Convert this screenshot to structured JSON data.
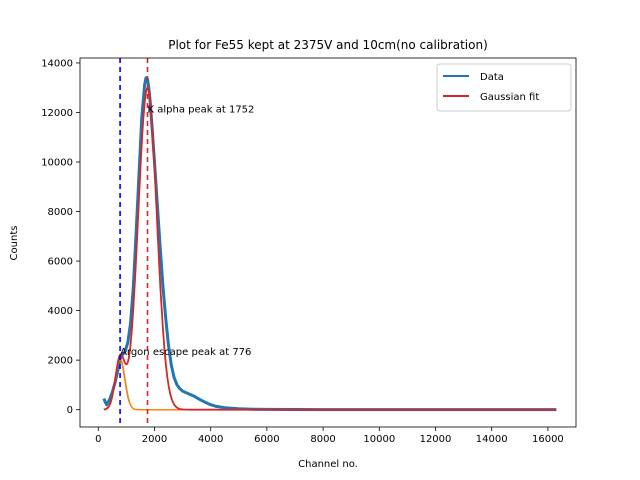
{
  "chart_data": {
    "type": "line",
    "title": "Plot for Fe55 kept at 2375V and 10cm(no calibration)",
    "xlabel": "Channel no.",
    "ylabel": "Counts",
    "xlim": [
      -650,
      17000
    ],
    "ylim": [
      -700,
      14200
    ],
    "xticks": [
      0,
      2000,
      4000,
      6000,
      8000,
      10000,
      12000,
      14000,
      16000
    ],
    "yticks": [
      0,
      2000,
      4000,
      6000,
      8000,
      10000,
      12000,
      14000
    ],
    "grid": false,
    "legend": {
      "placement": "top-right",
      "entries": [
        {
          "label": "Data",
          "color": "#1f77b4"
        },
        {
          "label": "Gaussian fit",
          "color": "#d62728"
        }
      ]
    },
    "series": [
      {
        "name": "Data",
        "color": "#1f77b4",
        "style": "solid",
        "x": [
          200,
          250,
          300,
          400,
          500,
          600,
          700,
          776,
          850,
          950,
          1050,
          1150,
          1250,
          1350,
          1450,
          1550,
          1650,
          1700,
          1752,
          1800,
          1850,
          1900,
          2000,
          2100,
          2200,
          2300,
          2400,
          2500,
          2600,
          2700,
          2800,
          2900,
          3000,
          3200,
          3400,
          3600,
          3800,
          4000,
          4200,
          4500,
          5000,
          5500,
          6000,
          7000,
          8000,
          10000,
          12000,
          14000,
          16300
        ],
        "y": [
          450,
          300,
          200,
          400,
          700,
          1100,
          1600,
          2050,
          2200,
          2350,
          2700,
          3500,
          5000,
          7200,
          9500,
          11800,
          13100,
          13400,
          13350,
          13000,
          12400,
          11600,
          10000,
          8300,
          6600,
          5000,
          3700,
          2600,
          1800,
          1300,
          1000,
          850,
          750,
          650,
          550,
          420,
          300,
          200,
          130,
          80,
          40,
          20,
          10,
          5,
          3,
          2,
          2,
          2,
          2
        ]
      },
      {
        "color": "#2ca02c",
        "style": "solid",
        "kind": "gaussian",
        "amplitude": 2050,
        "mean": 776,
        "sigma": 170,
        "x_range": [
          200,
          1100
        ]
      },
      {
        "color": "#ff7f0e",
        "style": "solid",
        "kind": "gaussian",
        "amplitude": 2050,
        "mean": 776,
        "sigma": 170,
        "x_range": [
          200,
          16300
        ]
      },
      {
        "name": "Gaussian fit",
        "color": "#d62728",
        "style": "solid",
        "kind": "double-gaussian",
        "components": [
          {
            "amplitude": 13000,
            "mean": 1752,
            "sigma": 330
          },
          {
            "amplitude": 2050,
            "mean": 776,
            "sigma": 170
          }
        ],
        "x_range": [
          200,
          16300
        ]
      }
    ],
    "vlines": [
      {
        "x": 776,
        "color": "#0000ff",
        "style": "dashed"
      },
      {
        "x": 1752,
        "color": "#d62728",
        "style": "dashed"
      }
    ],
    "annotations": [
      {
        "text": "K alpha peak at 1752",
        "x": 1752,
        "y": 12000
      },
      {
        "text": "Argon escape peak at 776",
        "x": 776,
        "y": 2200
      }
    ]
  }
}
